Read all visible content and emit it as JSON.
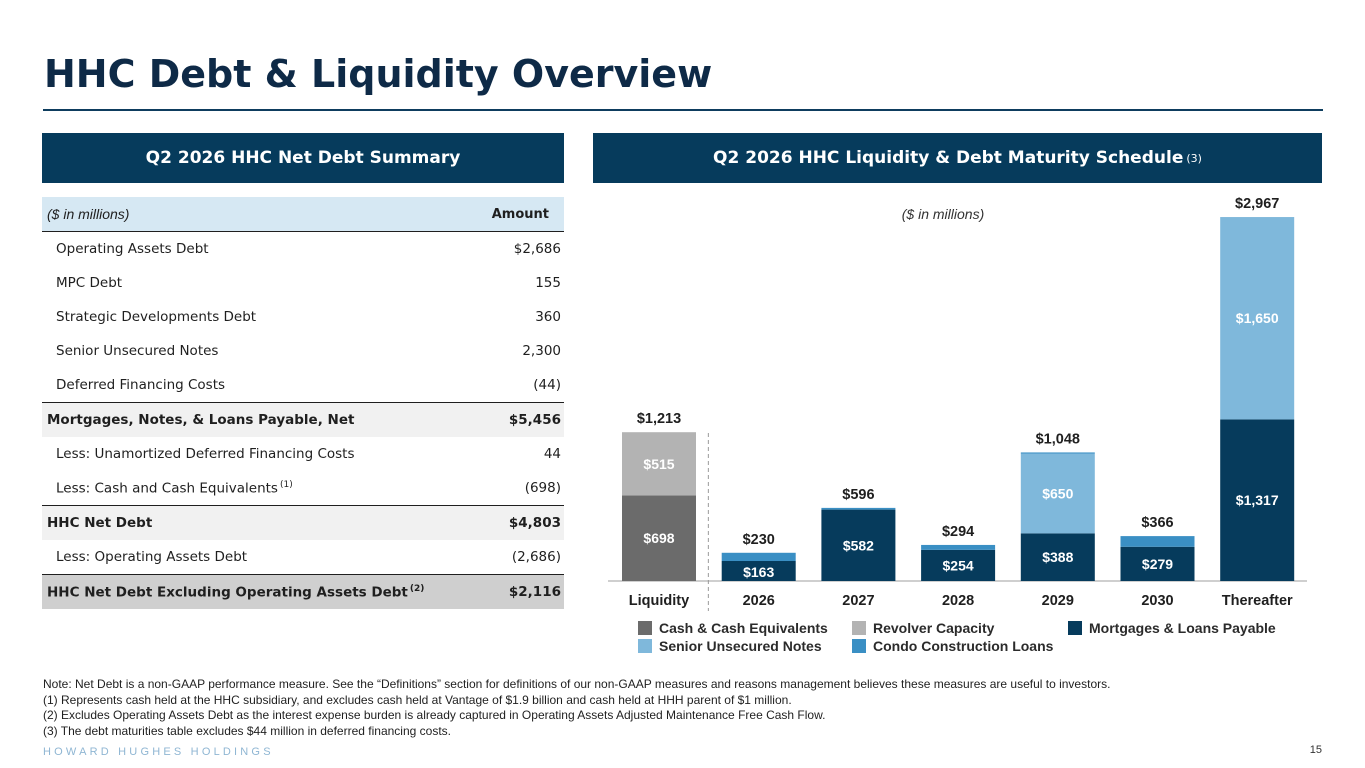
{
  "title": "HHC Debt & Liquidity Overview",
  "left_panel": {
    "header": "Q2 2026 HHC Net Debt Summary",
    "table": {
      "unit_label": "($ in millions)",
      "amount_header": "Amount",
      "rows": [
        {
          "label": "Operating Assets Debt",
          "value": "$2,686",
          "style": "normal"
        },
        {
          "label": "MPC Debt",
          "value": "155",
          "style": "normal"
        },
        {
          "label": "Strategic Developments Debt",
          "value": "360",
          "style": "normal"
        },
        {
          "label": "Senior Unsecured Notes",
          "value": "2,300",
          "style": "normal"
        },
        {
          "label": "Deferred Financing Costs",
          "value": "(44)",
          "style": "normal"
        },
        {
          "label": "Mortgages, Notes, & Loans Payable, Net",
          "value": "$5,456",
          "style": "subtotal"
        },
        {
          "label": "Less: Unamortized Deferred Financing Costs",
          "value": "44",
          "style": "normal"
        },
        {
          "label": "Less: Cash and Cash Equivalents",
          "footnote": "(1)",
          "value": "(698)",
          "style": "normal"
        },
        {
          "label": "HHC Net Debt",
          "value": "$4,803",
          "style": "subtotal"
        },
        {
          "label": "Less: Operating Assets Debt",
          "value": "(2,686)",
          "style": "normal"
        },
        {
          "label": "HHC Net Debt Excluding Operating Assets Debt",
          "footnote": "(2)",
          "value": "$2,116",
          "style": "total"
        }
      ]
    }
  },
  "right_panel": {
    "header": "Q2 2026 HHC Liquidity & Debt Maturity Schedule",
    "header_footnote": "(3)"
  },
  "chart_data": {
    "type": "bar",
    "stacked": true,
    "subtitle": "($ in millions)",
    "categories": [
      "Liquidity",
      "2026",
      "2027",
      "2028",
      "2029",
      "2030",
      "Thereafter"
    ],
    "series": [
      {
        "name": "Cash & Cash Equivalents",
        "color": "#6b6b6b",
        "values": [
          698,
          0,
          0,
          0,
          0,
          0,
          0
        ]
      },
      {
        "name": "Revolver Capacity",
        "color": "#b3b3b3",
        "values": [
          515,
          0,
          0,
          0,
          0,
          0,
          0
        ]
      },
      {
        "name": "Mortgages & Loans Payable",
        "color": "#063b5c",
        "values": [
          0,
          163,
          582,
          254,
          388,
          279,
          1317
        ]
      },
      {
        "name": "Senior Unsecured Notes",
        "color": "#7fb8db",
        "values": [
          0,
          0,
          0,
          0,
          650,
          0,
          1650
        ]
      },
      {
        "name": "Condo Construction Loans",
        "color": "#3a8fc4",
        "values": [
          0,
          67,
          14,
          40,
          10,
          87,
          0
        ]
      }
    ],
    "segment_labels": [
      {
        "category": "Liquidity",
        "series": "Cash & Cash Equivalents",
        "text": "$698"
      },
      {
        "category": "Liquidity",
        "series": "Revolver Capacity",
        "text": "$515"
      },
      {
        "category": "2026",
        "series": "Mortgages & Loans Payable",
        "text": "$163"
      },
      {
        "category": "2027",
        "series": "Mortgages & Loans Payable",
        "text": "$582"
      },
      {
        "category": "2028",
        "series": "Mortgages & Loans Payable",
        "text": "$254"
      },
      {
        "category": "2029",
        "series": "Mortgages & Loans Payable",
        "text": "$388"
      },
      {
        "category": "2029",
        "series": "Senior Unsecured Notes",
        "text": "$650"
      },
      {
        "category": "2030",
        "series": "Mortgages & Loans Payable",
        "text": "$279"
      },
      {
        "category": "Thereafter",
        "series": "Mortgages & Loans Payable",
        "text": "$1,317"
      },
      {
        "category": "Thereafter",
        "series": "Senior Unsecured Notes",
        "text": "$1,650"
      }
    ],
    "totals": [
      "$1,213",
      "$230",
      "$596",
      "$294",
      "$1,048",
      "$366",
      "$2,967"
    ],
    "ylim": [
      0,
      3000
    ],
    "grid": false,
    "legend": {
      "placement": "bottom",
      "order": [
        "Cash & Cash Equivalents",
        "Revolver Capacity",
        "Mortgages & Loans Payable",
        "Senior Unsecured Notes",
        "Condo Construction Loans"
      ]
    }
  },
  "notes": [
    "Note: Net Debt is a non-GAAP performance measure. See the “Definitions” section for definitions of our non-GAAP measures and reasons management believes these measures are useful to investors.",
    "(1) Represents cash held at the HHC subsidiary, and excludes cash held at Vantage of $1.9 billion and cash held at HHH parent of $1 million.",
    "(2) Excludes Operating Assets Debt as the interest expense burden is already captured in Operating Assets Adjusted Maintenance Free Cash Flow.",
    "(3) The debt maturities table excludes $44 million in deferred financing costs."
  ],
  "footer": {
    "brand": "HOWARD HUGHES HOLDINGS",
    "page_number": "15"
  }
}
